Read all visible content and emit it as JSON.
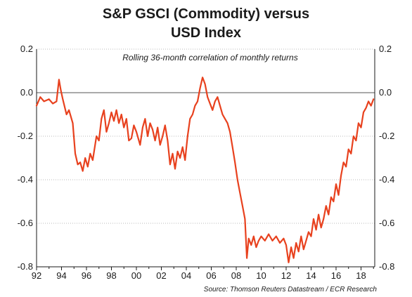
{
  "chart_data": {
    "type": "line",
    "title_line1": "S&P GSCI (Commodity) versus",
    "title_line2": "USD Index",
    "subtitle": "Rolling 36-month correlation of monthly returns",
    "source": "Source: Thomson Reuters Datastream / ECR Research",
    "xlabel": "",
    "ylabel": "",
    "xlim": [
      1992,
      2019.1
    ],
    "ylim": [
      -0.8,
      0.2
    ],
    "x_ticks": [
      1992,
      1994,
      1996,
      1998,
      2000,
      2002,
      2004,
      2006,
      2008,
      2010,
      2012,
      2014,
      2016,
      2018
    ],
    "x_tick_labels": [
      "92",
      "94",
      "96",
      "98",
      "00",
      "02",
      "04",
      "06",
      "08",
      "10",
      "12",
      "14",
      "16",
      "18"
    ],
    "y_ticks": [
      0.2,
      0.0,
      -0.2,
      -0.4,
      -0.6,
      -0.8
    ],
    "y_tick_labels": [
      "0.2",
      "0.0",
      "-0.2",
      "-0.4",
      "-0.6",
      "-0.8"
    ],
    "grid": true,
    "line_color": "#e8411e",
    "series": [
      {
        "values": [
          [
            1992.0,
            -0.06
          ],
          [
            1992.3,
            -0.02
          ],
          [
            1992.6,
            -0.04
          ],
          [
            1993.0,
            -0.03
          ],
          [
            1993.3,
            -0.05
          ],
          [
            1993.6,
            -0.04
          ],
          [
            1993.8,
            0.06
          ],
          [
            1993.95,
            0.01
          ],
          [
            1994.1,
            -0.03
          ],
          [
            1994.4,
            -0.1
          ],
          [
            1994.6,
            -0.08
          ],
          [
            1994.9,
            -0.14
          ],
          [
            1995.1,
            -0.28
          ],
          [
            1995.3,
            -0.33
          ],
          [
            1995.5,
            -0.32
          ],
          [
            1995.7,
            -0.36
          ],
          [
            1995.9,
            -0.3
          ],
          [
            1996.1,
            -0.34
          ],
          [
            1996.3,
            -0.28
          ],
          [
            1996.5,
            -0.31
          ],
          [
            1996.8,
            -0.2
          ],
          [
            1997.0,
            -0.22
          ],
          [
            1997.2,
            -0.12
          ],
          [
            1997.4,
            -0.08
          ],
          [
            1997.6,
            -0.18
          ],
          [
            1997.8,
            -0.14
          ],
          [
            1998.0,
            -0.09
          ],
          [
            1998.2,
            -0.13
          ],
          [
            1998.4,
            -0.08
          ],
          [
            1998.6,
            -0.14
          ],
          [
            1998.8,
            -0.1
          ],
          [
            1999.0,
            -0.16
          ],
          [
            1999.2,
            -0.12
          ],
          [
            1999.4,
            -0.22
          ],
          [
            1999.6,
            -0.21
          ],
          [
            1999.8,
            -0.15
          ],
          [
            2000.0,
            -0.18
          ],
          [
            2000.3,
            -0.24
          ],
          [
            2000.5,
            -0.16
          ],
          [
            2000.7,
            -0.12
          ],
          [
            2000.9,
            -0.2
          ],
          [
            2001.1,
            -0.14
          ],
          [
            2001.3,
            -0.17
          ],
          [
            2001.5,
            -0.22
          ],
          [
            2001.7,
            -0.16
          ],
          [
            2001.9,
            -0.24
          ],
          [
            2002.1,
            -0.2
          ],
          [
            2002.3,
            -0.15
          ],
          [
            2002.5,
            -0.22
          ],
          [
            2002.7,
            -0.33
          ],
          [
            2002.9,
            -0.28
          ],
          [
            2003.1,
            -0.35
          ],
          [
            2003.3,
            -0.27
          ],
          [
            2003.5,
            -0.3
          ],
          [
            2003.7,
            -0.25
          ],
          [
            2003.9,
            -0.31
          ],
          [
            2004.1,
            -0.2
          ],
          [
            2004.3,
            -0.12
          ],
          [
            2004.5,
            -0.1
          ],
          [
            2004.7,
            -0.06
          ],
          [
            2004.9,
            -0.04
          ],
          [
            2005.1,
            0.02
          ],
          [
            2005.3,
            0.07
          ],
          [
            2005.5,
            0.04
          ],
          [
            2005.7,
            -0.02
          ],
          [
            2005.9,
            -0.05
          ],
          [
            2006.1,
            -0.08
          ],
          [
            2006.3,
            -0.04
          ],
          [
            2006.5,
            -0.02
          ],
          [
            2006.7,
            -0.06
          ],
          [
            2006.9,
            -0.1
          ],
          [
            2007.1,
            -0.12
          ],
          [
            2007.3,
            -0.14
          ],
          [
            2007.5,
            -0.18
          ],
          [
            2007.7,
            -0.25
          ],
          [
            2007.9,
            -0.32
          ],
          [
            2008.1,
            -0.4
          ],
          [
            2008.3,
            -0.46
          ],
          [
            2008.5,
            -0.52
          ],
          [
            2008.7,
            -0.58
          ],
          [
            2008.85,
            -0.76
          ],
          [
            2009.0,
            -0.67
          ],
          [
            2009.2,
            -0.7
          ],
          [
            2009.4,
            -0.66
          ],
          [
            2009.6,
            -0.71
          ],
          [
            2009.8,
            -0.68
          ],
          [
            2010.0,
            -0.66
          ],
          [
            2010.3,
            -0.68
          ],
          [
            2010.6,
            -0.65
          ],
          [
            2010.9,
            -0.68
          ],
          [
            2011.2,
            -0.66
          ],
          [
            2011.5,
            -0.69
          ],
          [
            2011.8,
            -0.67
          ],
          [
            2012.0,
            -0.7
          ],
          [
            2012.2,
            -0.78
          ],
          [
            2012.4,
            -0.71
          ],
          [
            2012.6,
            -0.76
          ],
          [
            2012.8,
            -0.69
          ],
          [
            2013.0,
            -0.73
          ],
          [
            2013.2,
            -0.66
          ],
          [
            2013.4,
            -0.72
          ],
          [
            2013.6,
            -0.68
          ],
          [
            2013.8,
            -0.64
          ],
          [
            2014.0,
            -0.66
          ],
          [
            2014.2,
            -0.58
          ],
          [
            2014.4,
            -0.63
          ],
          [
            2014.6,
            -0.56
          ],
          [
            2014.8,
            -0.62
          ],
          [
            2015.0,
            -0.58
          ],
          [
            2015.2,
            -0.52
          ],
          [
            2015.4,
            -0.56
          ],
          [
            2015.6,
            -0.48
          ],
          [
            2015.8,
            -0.5
          ],
          [
            2016.0,
            -0.42
          ],
          [
            2016.2,
            -0.47
          ],
          [
            2016.4,
            -0.38
          ],
          [
            2016.6,
            -0.32
          ],
          [
            2016.8,
            -0.34
          ],
          [
            2017.0,
            -0.26
          ],
          [
            2017.2,
            -0.28
          ],
          [
            2017.4,
            -0.2
          ],
          [
            2017.6,
            -0.22
          ],
          [
            2017.8,
            -0.14
          ],
          [
            2018.0,
            -0.16
          ],
          [
            2018.2,
            -0.09
          ],
          [
            2018.4,
            -0.07
          ],
          [
            2018.6,
            -0.04
          ],
          [
            2018.8,
            -0.06
          ],
          [
            2019.0,
            -0.03
          ]
        ]
      }
    ]
  }
}
